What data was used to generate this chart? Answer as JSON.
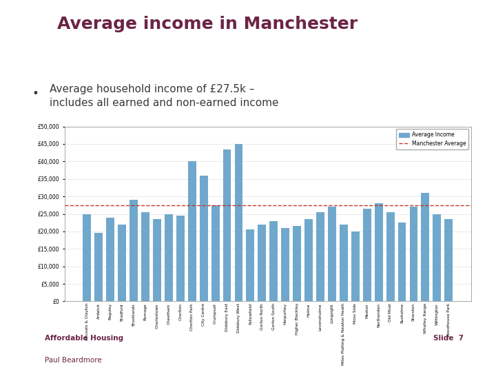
{
  "title": "Average income in Manchester",
  "title_color": "#6b2444",
  "bullet_text_line1": "Average household income of £27.5k –",
  "bullet_text_line2": "includes all earned and non-earned income",
  "bullet_color": "#3a3a3a",
  "manchester_average": 27500,
  "bar_color": "#6fa8cc",
  "avg_line_color": "#c0392b",
  "background_color": "#ffffff",
  "background_bottom": "#c4b9b8",
  "footer_left1": "Affordable Housing",
  "footer_left2": "Paul Beardmore",
  "footer_right": "Slide  7",
  "footer_color": "#6b2444",
  "categories": [
    "Ancoats & Clayton",
    "Ardwick",
    "Baguley",
    "Bradford",
    "Brooklands",
    "Burnage",
    "Charlestown",
    "Cheetham",
    "Chorlton",
    "Chorlton Park",
    "City Centre",
    "Crumpsall",
    "Didsbury East",
    "Didsbury West",
    "Fallowfield",
    "Gorton North",
    "Gorton South",
    "Harpurhey",
    "Higher Blackley",
    "Hulme",
    "Levenshulme",
    "Longsight",
    "Miles Platting & Newton Heath",
    "Moss Side",
    "Moston",
    "Northenden",
    "Old Moat",
    "Rusholme",
    "Sharston",
    "Whalley Range",
    "Withington",
    "Woodhouse Park"
  ],
  "values": [
    25000,
    19500,
    24000,
    22000,
    29000,
    25500,
    23500,
    25000,
    24500,
    40000,
    36000,
    27500,
    43500,
    45000,
    20500,
    22000,
    23000,
    21000,
    21500,
    23500,
    25500,
    27000,
    22000,
    20000,
    26500,
    28000,
    25500,
    22500,
    27000,
    31000,
    25000,
    23500
  ],
  "ylim_max": 50000,
  "yticks": [
    0,
    5000,
    10000,
    15000,
    20000,
    25000,
    30000,
    35000,
    40000,
    45000,
    50000
  ],
  "chart_bg": "#ffffff",
  "chart_border": "#999999",
  "legend_label_bar": "Average Income",
  "legend_label_line": "Manchester Average"
}
